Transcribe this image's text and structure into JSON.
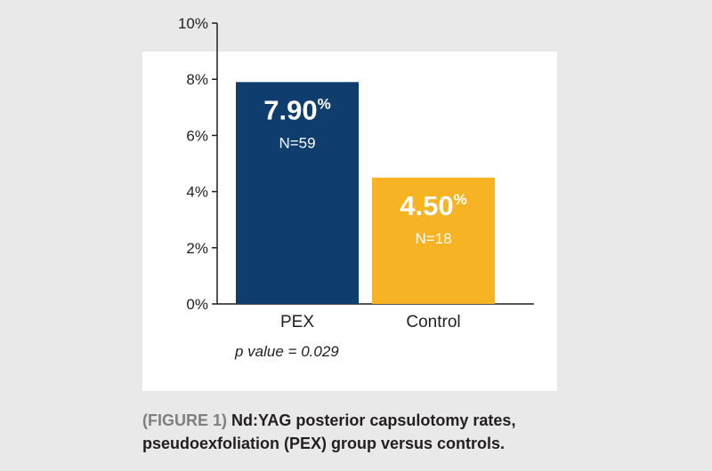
{
  "chart_data": {
    "type": "bar",
    "categories": [
      "PEX",
      "Control"
    ],
    "values": [
      7.9,
      4.5
    ],
    "value_labels": [
      "7.90",
      "4.50"
    ],
    "value_suffix": "%",
    "n_labels": [
      "N=59",
      "N=18"
    ],
    "bar_colors": [
      "#0f3e6e",
      "#f6b324"
    ],
    "ylim": [
      0,
      10
    ],
    "yticks": [
      0,
      2,
      4,
      6,
      8,
      10
    ],
    "ytick_labels": [
      "0%",
      "2%",
      "4%",
      "6%",
      "8%",
      "10%"
    ],
    "grid": false,
    "annotation": "p value = 0.029"
  },
  "caption": {
    "figure_label": "(FIGURE 1)",
    "line1": "Nd:YAG posterior capsulotomy rates,",
    "line2": "pseudoexfoliation (PEX) group versus controls."
  }
}
